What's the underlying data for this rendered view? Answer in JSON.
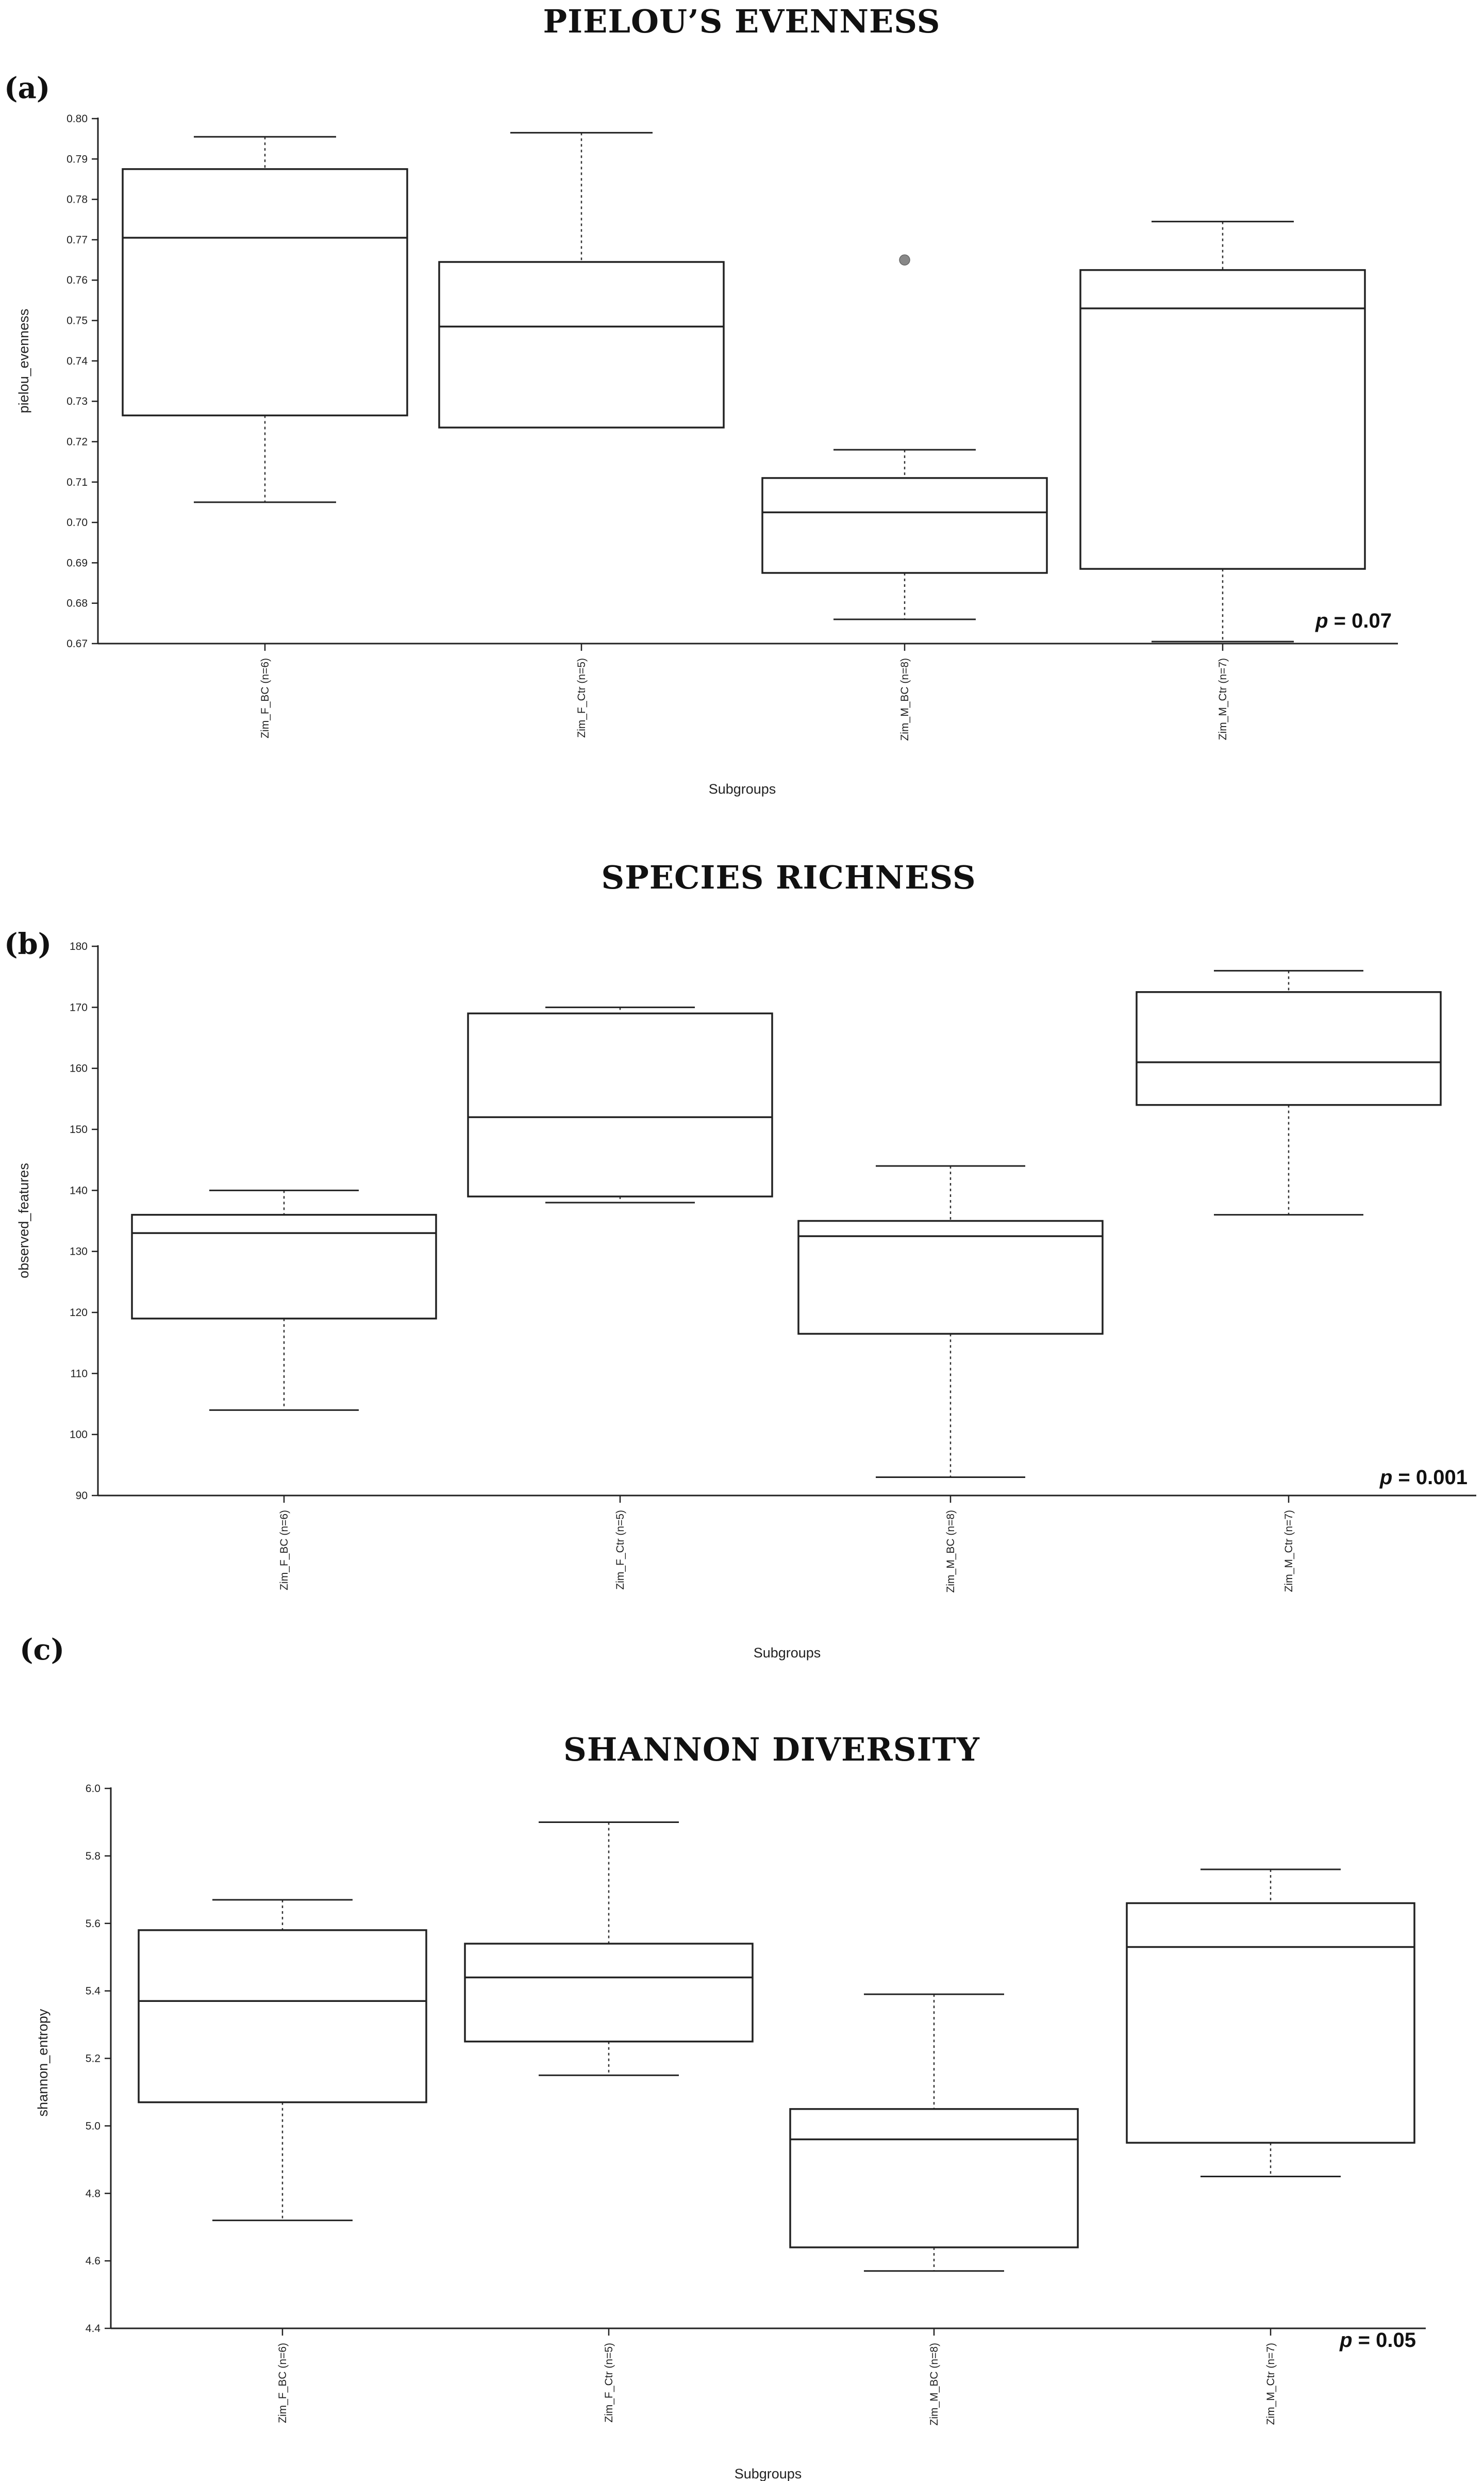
{
  "figure": {
    "panels": [
      "a",
      "b",
      "c"
    ]
  },
  "chart_data": [
    {
      "type": "box",
      "panel_label": "(a)",
      "title": "PIELOU’S EVENNESS",
      "xlabel": "Subgroups",
      "ylabel": "pielou_evenness",
      "ylim": [
        0.67,
        0.8
      ],
      "yticks": [
        0.67,
        0.68,
        0.69,
        0.7,
        0.71,
        0.72,
        0.73,
        0.74,
        0.75,
        0.76,
        0.77,
        0.78,
        0.79,
        0.8
      ],
      "ytick_labels": [
        "0.67",
        "0.68",
        "0.69",
        "0.70",
        "0.71",
        "0.72",
        "0.73",
        "0.74",
        "0.75",
        "0.76",
        "0.77",
        "0.78",
        "0.79",
        "0.80"
      ],
      "categories": [
        "Zim_F_BC (n=6)",
        "Zim_F_Ctr (n=5)",
        "Zim_M_BC (n=8)",
        "Zim_M_Ctr (n=7)"
      ],
      "boxes": [
        {
          "whisker_low": 0.705,
          "q1": 0.7265,
          "median": 0.7705,
          "q3": 0.7875,
          "whisker_high": 0.7955,
          "outliers": []
        },
        {
          "whisker_low": 0.7235,
          "q1": 0.7235,
          "median": 0.7485,
          "q3": 0.7645,
          "whisker_high": 0.7965,
          "outliers": []
        },
        {
          "whisker_low": 0.676,
          "q1": 0.6875,
          "median": 0.7025,
          "q3": 0.711,
          "whisker_high": 0.718,
          "outliers": [
            0.765
          ]
        },
        {
          "whisker_low": 0.6705,
          "q1": 0.6885,
          "median": 0.753,
          "q3": 0.7625,
          "whisker_high": 0.7745,
          "outliers": []
        }
      ],
      "p_label": "p",
      "p_text": " = 0.07"
    },
    {
      "type": "box",
      "panel_label": "(b)",
      "title": "SPECIES RICHNESS",
      "xlabel": "Subgroups",
      "ylabel": "observed_features",
      "ylim": [
        90,
        180
      ],
      "yticks": [
        90,
        100,
        110,
        120,
        130,
        140,
        150,
        160,
        170,
        180
      ],
      "ytick_labels": [
        "90",
        "100",
        "110",
        "120",
        "130",
        "140",
        "150",
        "160",
        "170",
        "180"
      ],
      "categories": [
        "Zim_F_BC (n=6)",
        "Zim_F_Ctr (n=5)",
        "Zim_M_BC (n=8)",
        "Zim_M_Ctr (n=7)"
      ],
      "boxes": [
        {
          "whisker_low": 104,
          "q1": 119,
          "median": 133,
          "q3": 136,
          "whisker_high": 140,
          "outliers": []
        },
        {
          "whisker_low": 138,
          "q1": 139,
          "median": 152,
          "q3": 169,
          "whisker_high": 170,
          "outliers": []
        },
        {
          "whisker_low": 93,
          "q1": 116.5,
          "median": 132.5,
          "q3": 135,
          "whisker_high": 144,
          "outliers": []
        },
        {
          "whisker_low": 136,
          "q1": 154,
          "median": 161,
          "q3": 172.5,
          "whisker_high": 176,
          "outliers": []
        }
      ],
      "p_label": "p",
      "p_text": " = 0.001"
    },
    {
      "type": "box",
      "panel_label": "(c)",
      "title": "SHANNON DIVERSITY",
      "xlabel": "Subgroups",
      "ylabel": "shannon_entropy",
      "ylim": [
        4.4,
        6.0
      ],
      "yticks": [
        4.4,
        4.6,
        4.8,
        5.0,
        5.2,
        5.4,
        5.6,
        5.8,
        6.0
      ],
      "ytick_labels": [
        "4.4",
        "4.6",
        "4.8",
        "5.0",
        "5.2",
        "5.4",
        "5.6",
        "5.8",
        "6.0"
      ],
      "categories": [
        "Zim_F_BC (n=6)",
        "Zim_F_Ctr (n=5)",
        "Zim_M_BC (n=8)",
        "Zim_M_Ctr (n=7)"
      ],
      "boxes": [
        {
          "whisker_low": 4.72,
          "q1": 5.07,
          "median": 5.37,
          "q3": 5.58,
          "whisker_high": 5.67,
          "outliers": []
        },
        {
          "whisker_low": 5.15,
          "q1": 5.25,
          "median": 5.44,
          "q3": 5.54,
          "whisker_high": 5.9,
          "outliers": []
        },
        {
          "whisker_low": 4.57,
          "q1": 4.64,
          "median": 4.96,
          "q3": 5.05,
          "whisker_high": 5.39,
          "outliers": []
        },
        {
          "whisker_low": 4.85,
          "q1": 4.95,
          "median": 5.53,
          "q3": 5.66,
          "whisker_high": 5.76,
          "outliers": []
        }
      ],
      "p_label": "p",
      "p_text": " = 0.05"
    }
  ]
}
